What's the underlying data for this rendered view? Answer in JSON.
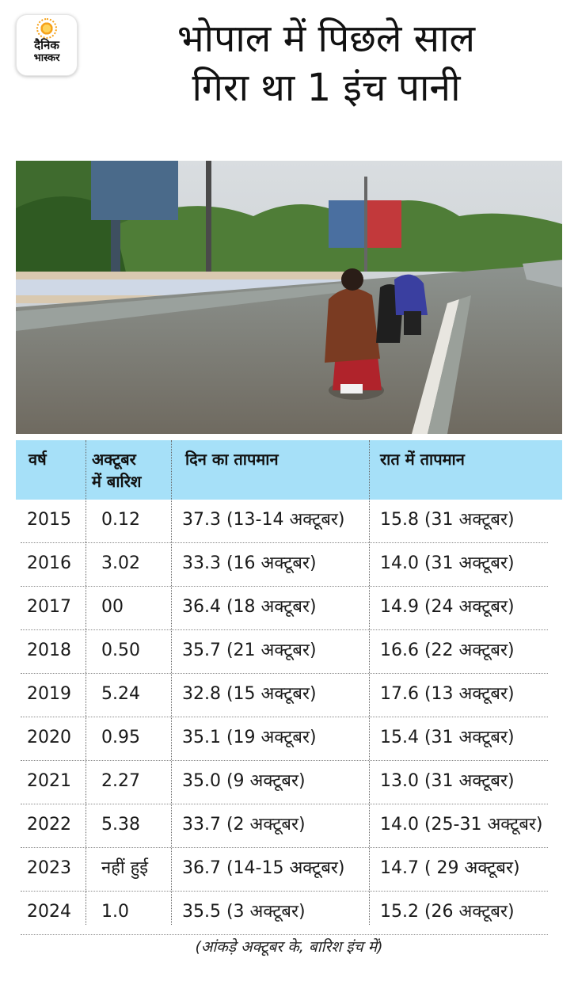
{
  "brand": {
    "line1": "दैनिक",
    "line2": "भास्कर"
  },
  "headline": {
    "line1": "भोपाल में पिछले साल",
    "line2": "गिरा था 1 इंच पानी"
  },
  "table": {
    "headers": [
      {
        "line1": "वर्ष",
        "line2": ""
      },
      {
        "line1": "अक्टूबर",
        "line2": "में बारिश"
      },
      {
        "line1": "दिन का तापमान",
        "line2": ""
      },
      {
        "line1": "रात में तापमान",
        "line2": ""
      }
    ],
    "rows": [
      [
        "2015",
        "0.12",
        "37.3 (13-14 अक्टूबर)",
        "15.8 (31 अक्टूबर)"
      ],
      [
        "2016",
        "3.02",
        "33.3 (16 अक्टूबर)",
        "14.0 (31 अक्टूबर)"
      ],
      [
        "2017",
        "00",
        "36.4 (18 अक्टूबर)",
        "14.9 (24 अक्टूबर)"
      ],
      [
        "2018",
        "0.50",
        "35.7 (21 अक्टूबर)",
        "16.6 (22 अक्टूबर)"
      ],
      [
        "2019",
        "5.24",
        "32.8 (15 अक्टूबर)",
        "17.6 (13 अक्टूबर)"
      ],
      [
        "2020",
        "0.95",
        "35.1 (19 अक्टूबर)",
        "15.4 (31 अक्टूबर)"
      ],
      [
        "2021",
        "2.27",
        "35.0 (9 अक्टूबर)",
        "13.0 (31 अक्टूबर)"
      ],
      [
        "2022",
        "5.38",
        "33.7 (2 अक्टूबर)",
        "14.0 (25-31 अक्टूबर)"
      ],
      [
        "2023",
        "नहीं हुई",
        "36.7 (14-15 अक्टूबर)",
        "14.7 ( 29 अक्टूबर)"
      ],
      [
        "2024",
        "1.0",
        "35.5 (3 अक्टूबर)",
        "15.2 (26 अक्टूबर)"
      ]
    ]
  },
  "footnote": "(आंकड़े अक्टूबर के, बारिश इंच में)",
  "colors": {
    "header_bg": "#a6e0f8",
    "text": "#1a1a1a"
  }
}
